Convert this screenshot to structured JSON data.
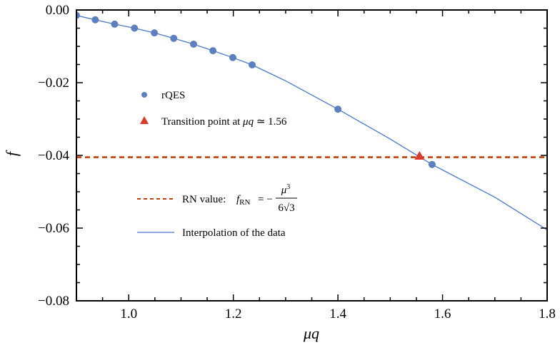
{
  "chart_data": {
    "type": "scatter",
    "title": "",
    "xlabel": "μq",
    "ylabel": "f",
    "xlim": [
      0.9,
      1.8
    ],
    "ylim": [
      -0.08,
      0.0
    ],
    "x_ticks": [
      1.0,
      1.2,
      1.4,
      1.6,
      1.8
    ],
    "x_tick_labels": [
      "1.0",
      "1.2",
      "1.4",
      "1.6",
      "1.8"
    ],
    "y_ticks": [
      0.0,
      -0.02,
      -0.04,
      -0.06,
      -0.08
    ],
    "y_tick_labels": [
      "0.00",
      "−0.02",
      "−0.04",
      "−0.06",
      "−0.08"
    ],
    "grid": false,
    "series": [
      {
        "name": "rQES",
        "kind": "scatter",
        "color": "#5b7fbf",
        "x": [
          0.9,
          0.936,
          0.973,
          1.011,
          1.049,
          1.086,
          1.124,
          1.161,
          1.199,
          1.236,
          1.4,
          1.58
        ],
        "y": [
          -0.0015,
          -0.0027,
          -0.0039,
          -0.005,
          -0.0063,
          -0.0078,
          -0.0094,
          -0.0112,
          -0.0131,
          -0.0151,
          -0.0273,
          -0.0425
        ]
      },
      {
        "name": "Transition point at μq ≃ 1.56",
        "kind": "marker",
        "color": "#d93a2b",
        "x": [
          1.556
        ],
        "y": [
          -0.0402
        ]
      },
      {
        "name": "RN value: f_RN = −μ³/(6√3)",
        "kind": "hline",
        "color": "#c0400a",
        "y": -0.0405
      },
      {
        "name": "Interpolation of the data",
        "kind": "line",
        "color": "#4a78c8",
        "x": [
          0.9,
          0.936,
          0.973,
          1.011,
          1.049,
          1.086,
          1.124,
          1.161,
          1.199,
          1.236,
          1.3,
          1.4,
          1.5,
          1.58,
          1.7,
          1.8
        ],
        "y": [
          -0.0015,
          -0.0027,
          -0.0039,
          -0.005,
          -0.0063,
          -0.0078,
          -0.0094,
          -0.0112,
          -0.0131,
          -0.0151,
          -0.0195,
          -0.0273,
          -0.0355,
          -0.0425,
          -0.0515,
          -0.0605
        ]
      }
    ],
    "legend": {
      "placement": "inside-left",
      "rqes": "rQES",
      "transition_prefix": "Transition point at ",
      "transition_math": "μq",
      "transition_suffix": " ≃ 1.56",
      "rn_prefix": "RN value: ",
      "rn_f": "f",
      "rn_sub": "RN",
      "rn_eq": " = −",
      "rn_num": "μ",
      "rn_sup": "3",
      "rn_den": "6√3",
      "interp": "Interpolation of the data"
    }
  }
}
